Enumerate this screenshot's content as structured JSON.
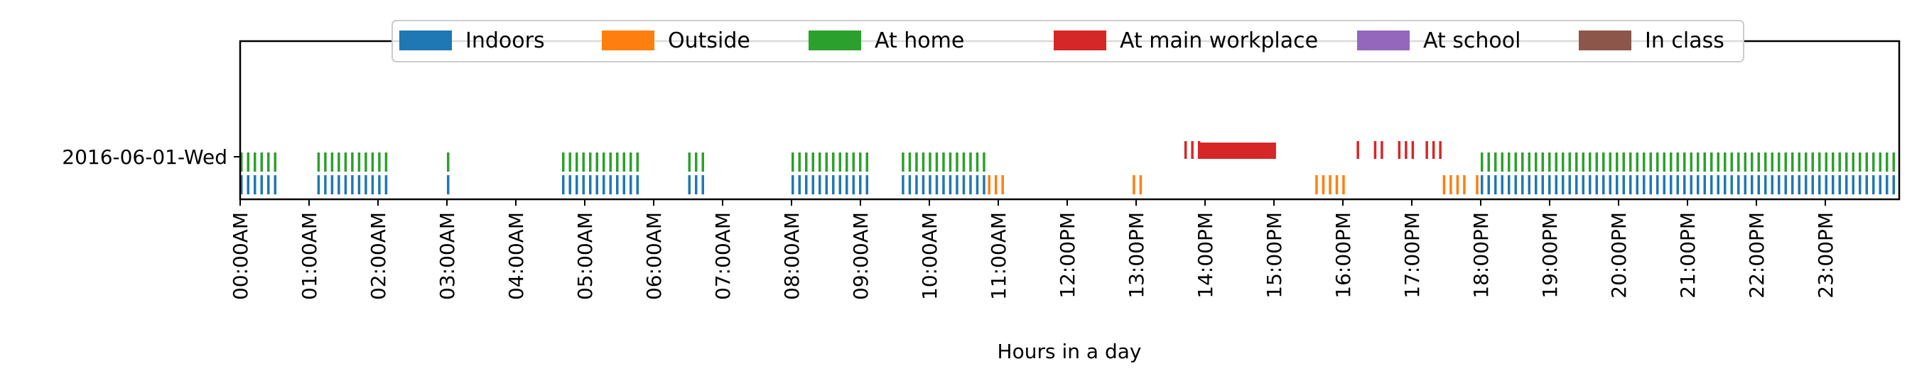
{
  "chart_data": {
    "type": "event-timeline",
    "xlabel": "Hours in a day",
    "row_labels": [
      "2016-06-01-Wed"
    ],
    "x_range_hours": [
      0,
      24
    ],
    "x_ticks": [
      "00:00AM",
      "01:00AM",
      "02:00AM",
      "03:00AM",
      "04:00AM",
      "05:00AM",
      "06:00AM",
      "07:00AM",
      "08:00AM",
      "09:00AM",
      "10:00AM",
      "11:00AM",
      "12:00PM",
      "13:00PM",
      "14:00PM",
      "15:00PM",
      "16:00PM",
      "17:00PM",
      "18:00PM",
      "19:00PM",
      "20:00PM",
      "21:00PM",
      "22:00PM",
      "23:00PM"
    ],
    "legend_position": "top-center",
    "series": [
      {
        "name": "Indoors",
        "color": "#1f77b4",
        "level": 1,
        "intervals": [
          [
            0.0,
            0.58
          ],
          [
            1.12,
            2.1
          ],
          [
            3.0,
            3.09
          ],
          [
            4.67,
            5.75
          ],
          [
            6.5,
            6.7
          ],
          [
            8.0,
            9.08
          ],
          [
            9.6,
            10.85
          ],
          [
            18.0,
            24.0
          ]
        ]
      },
      {
        "name": "Outside",
        "color": "#ff7f0e",
        "level": 1,
        "intervals": [
          [
            10.85,
            11.08
          ],
          [
            12.95,
            13.08
          ],
          [
            15.6,
            16.08
          ],
          [
            17.45,
            17.75
          ],
          [
            17.93,
            17.98
          ]
        ]
      },
      {
        "name": "At home",
        "color": "#2ca02c",
        "level": 2,
        "intervals": [
          [
            0.0,
            0.58
          ],
          [
            1.12,
            2.1
          ],
          [
            3.0,
            3.09
          ],
          [
            4.67,
            5.75
          ],
          [
            6.5,
            6.7
          ],
          [
            8.0,
            9.08
          ],
          [
            9.6,
            10.85
          ],
          [
            18.0,
            24.0
          ]
        ]
      },
      {
        "name": "At main workplace",
        "color": "#d62728",
        "level": 3,
        "intervals": [
          [
            13.7,
            13.92
          ],
          [
            13.92,
            15.03
          ],
          [
            16.2,
            16.25
          ],
          [
            16.45,
            16.55
          ],
          [
            16.8,
            17.0
          ],
          [
            17.2,
            17.42
          ]
        ],
        "solid": [
          false,
          true,
          false,
          false,
          false,
          false
        ]
      },
      {
        "name": "At school",
        "color": "#9467bd",
        "level": 3,
        "intervals": []
      },
      {
        "name": "In class",
        "color": "#8c564b",
        "level": 3,
        "intervals": []
      }
    ]
  }
}
